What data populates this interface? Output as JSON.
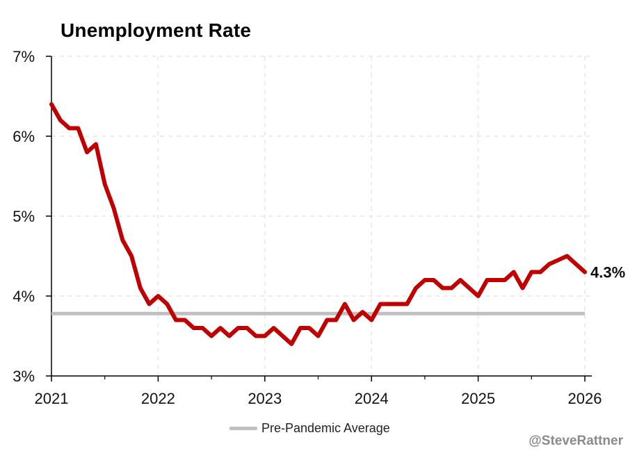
{
  "title": "Unemployment Rate",
  "legend": {
    "reference_label": "Pre-Pandemic Average"
  },
  "credit": "@SteveRattner",
  "colors": {
    "series": "#c00000",
    "reference": "#bfbfbf",
    "grid": "#e6e6e6",
    "axis": "#000000"
  },
  "chart_data": {
    "type": "line",
    "title": "Unemployment Rate",
    "xlabel": "",
    "ylabel": "",
    "x_ticks": [
      "2021",
      "2022",
      "2023",
      "2024",
      "2025",
      "2026"
    ],
    "y_ticks": [
      "3%",
      "4%",
      "5%",
      "6%",
      "7%"
    ],
    "ylim": [
      3,
      7
    ],
    "xlim": [
      "2021-01",
      "2026-01"
    ],
    "grid": true,
    "legend_position": "bottom-center",
    "end_label": "4.3%",
    "series": [
      {
        "x": [
          "2021-01",
          "2021-02",
          "2021-03",
          "2021-04",
          "2021-05",
          "2021-06",
          "2021-07",
          "2021-08",
          "2021-09",
          "2021-10",
          "2021-11",
          "2021-12",
          "2022-01",
          "2022-02",
          "2022-03",
          "2022-04",
          "2022-05",
          "2022-06",
          "2022-07",
          "2022-08",
          "2022-09",
          "2022-10",
          "2022-11",
          "2022-12",
          "2023-01",
          "2023-02",
          "2023-03",
          "2023-04",
          "2023-05",
          "2023-06",
          "2023-07",
          "2023-08",
          "2023-09",
          "2023-10",
          "2023-11",
          "2023-12",
          "2024-01",
          "2024-02",
          "2024-03",
          "2024-04",
          "2024-05",
          "2024-06",
          "2024-07",
          "2024-08",
          "2024-09",
          "2024-10",
          "2024-11",
          "2024-12",
          "2025-01",
          "2025-02",
          "2025-03",
          "2025-04",
          "2025-05",
          "2025-06",
          "2025-07",
          "2025-08",
          "2025-09",
          "2025-10",
          "2025-11",
          "2025-12",
          "2026-01"
        ],
        "values": [
          6.4,
          6.2,
          6.1,
          6.1,
          5.8,
          5.9,
          5.4,
          5.1,
          4.7,
          4.5,
          4.1,
          3.9,
          4.0,
          3.9,
          3.7,
          3.7,
          3.6,
          3.6,
          3.5,
          3.6,
          3.5,
          3.6,
          3.6,
          3.5,
          3.5,
          3.6,
          3.5,
          3.4,
          3.6,
          3.6,
          3.5,
          3.7,
          3.7,
          3.9,
          3.7,
          3.8,
          3.7,
          3.9,
          3.9,
          3.9,
          3.9,
          4.1,
          4.2,
          4.2,
          4.1,
          4.1,
          4.2,
          4.1,
          4.0,
          4.2,
          4.2,
          4.2,
          4.3,
          4.1,
          4.3,
          4.3,
          4.4,
          4.45,
          4.5,
          4.4,
          4.3
        ]
      }
    ],
    "reference_lines": [
      {
        "name": "Pre-Pandemic Average",
        "value": 3.78
      }
    ]
  }
}
